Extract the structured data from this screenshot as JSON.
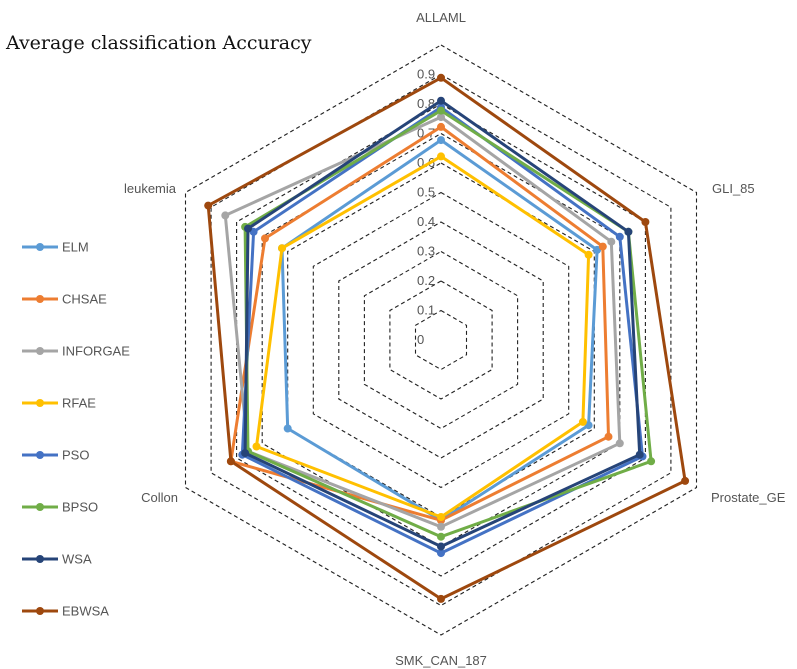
{
  "chart_data": {
    "type": "radar",
    "title": "Average classification Accuracy",
    "axes": [
      "ALLAML",
      "GLI_85",
      "Prostate_GE",
      "SMK_CAN_187",
      "Collon",
      "leukemia"
    ],
    "ticks": [
      "0",
      "0.1",
      "0.2",
      "0.3",
      "0.4",
      "0.5",
      "0.6",
      "0.7",
      "0.8",
      "0.9"
    ],
    "rmax": 0.9,
    "grid": "dashed",
    "legend_position": "left",
    "series": [
      {
        "name": "ELM",
        "color": "#5b9bd5",
        "values": [
          0.61,
          0.55,
          0.52,
          0.55,
          0.54,
          0.56
        ]
      },
      {
        "name": "CHSAE",
        "color": "#ed7d31",
        "values": [
          0.65,
          0.57,
          0.59,
          0.55,
          0.74,
          0.62
        ]
      },
      {
        "name": "INFORGAE",
        "color": "#a5a5a5",
        "values": [
          0.68,
          0.6,
          0.63,
          0.57,
          0.68,
          0.76
        ]
      },
      {
        "name": "RFAE",
        "color": "#ffc000",
        "values": [
          0.56,
          0.52,
          0.5,
          0.54,
          0.65,
          0.56
        ]
      },
      {
        "name": "PSO",
        "color": "#4472c4",
        "values": [
          0.71,
          0.63,
          0.71,
          0.65,
          0.7,
          0.66
        ]
      },
      {
        "name": "BPSO",
        "color": "#70ad47",
        "values": [
          0.7,
          0.66,
          0.74,
          0.6,
          0.68,
          0.69
        ]
      },
      {
        "name": "WSA",
        "color": "#264478",
        "values": [
          0.73,
          0.66,
          0.7,
          0.63,
          0.69,
          0.68
        ]
      },
      {
        "name": "EBWSA",
        "color": "#9e480e",
        "values": [
          0.8,
          0.72,
          0.86,
          0.79,
          0.74,
          0.82
        ]
      }
    ]
  }
}
